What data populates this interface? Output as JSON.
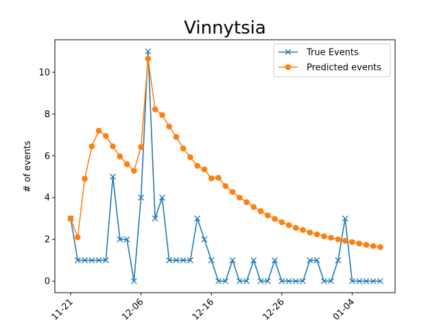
{
  "chart_data": {
    "type": "line",
    "title": "Vinnytsia",
    "xlabel": "",
    "ylabel": "# of events",
    "ylim": [
      -0.55,
      11.55
    ],
    "yticks": [
      0,
      2,
      4,
      6,
      8,
      10
    ],
    "xticks": [
      {
        "index": 0,
        "label": "11-21"
      },
      {
        "index": 10,
        "label": "12-06"
      },
      {
        "index": 20,
        "label": "12-16"
      },
      {
        "index": 30,
        "label": "12-26"
      },
      {
        "index": 40,
        "label": "01-04"
      }
    ],
    "legend_position": "top-right",
    "grid": false,
    "series": [
      {
        "name": "True Events",
        "color": "#1f77b4",
        "marker": "x",
        "values": [
          3,
          1,
          1,
          1,
          1,
          1,
          5,
          2,
          2,
          0,
          4,
          11,
          3,
          4,
          1,
          1,
          1,
          1,
          3,
          2,
          1,
          0,
          0,
          1,
          0,
          0,
          1,
          0,
          0,
          1,
          0,
          0,
          0,
          0,
          1,
          1,
          0,
          0,
          1,
          3,
          0,
          0,
          0,
          0,
          0
        ]
      },
      {
        "name": "Predicted events",
        "color": "#ff7f0e",
        "marker": "o",
        "values": [
          3.0,
          2.1,
          4.9,
          6.45,
          7.2,
          6.95,
          6.45,
          5.97,
          5.6,
          5.28,
          6.42,
          10.65,
          8.22,
          7.95,
          7.4,
          6.9,
          6.35,
          5.93,
          5.52,
          5.35,
          4.92,
          4.95,
          4.55,
          4.27,
          4.0,
          3.78,
          3.55,
          3.35,
          3.15,
          2.98,
          2.82,
          2.68,
          2.55,
          2.45,
          2.33,
          2.24,
          2.15,
          2.08,
          2.0,
          1.93,
          1.87,
          1.8,
          1.74,
          1.68,
          1.63
        ]
      }
    ]
  }
}
